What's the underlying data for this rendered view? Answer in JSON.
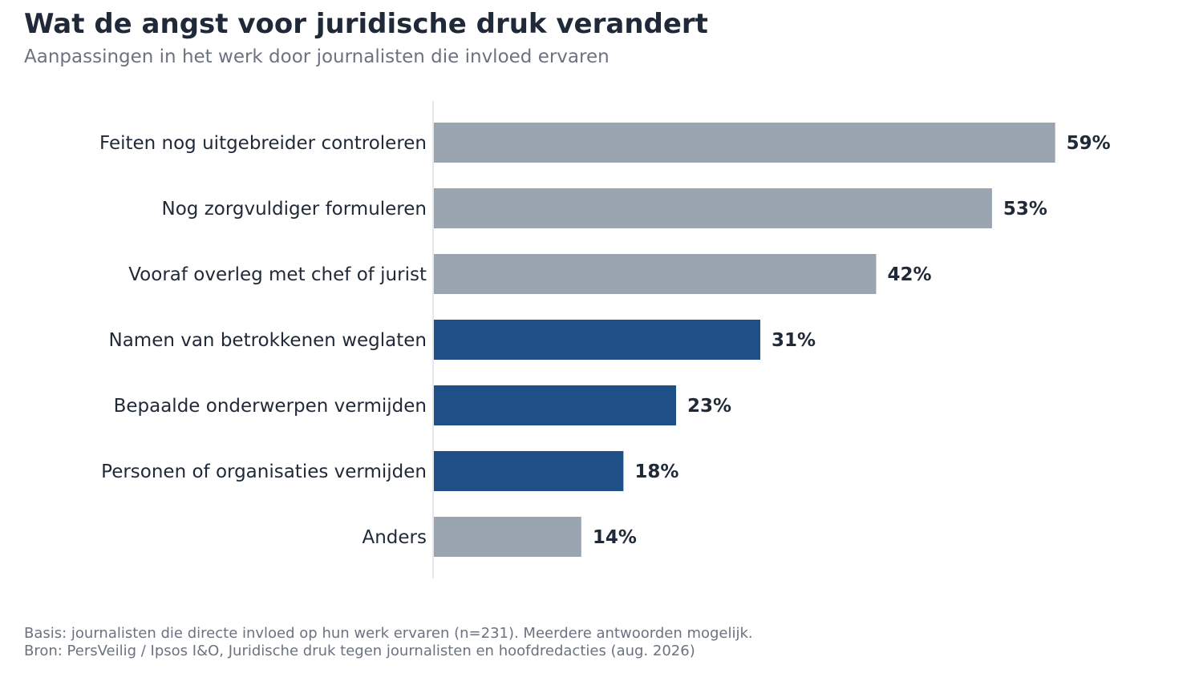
{
  "title": "Wat de angst voor juridische druk verandert",
  "subtitle": "Aanpassingen in het werk door journalisten die invloed ervaren",
  "footer": {
    "basis": "Basis: journalisten die directe invloed op hun werk ervaren (n=231). Meerdere antwoorden mogelijk.",
    "source": "Bron: PersVeilig / Ipsos I&O, Juridische druk tegen journalisten en hoofdredacties (aug. 2026)"
  },
  "colors": {
    "muted": "#9aa5b0",
    "highlight": "#1e4f86",
    "text": "#1f2937",
    "axis": "#e5e7eb"
  },
  "chart_data": {
    "type": "bar",
    "orientation": "horizontal",
    "categories": [
      "Feiten nog uitgebreider controleren",
      "Nog zorgvuldiger formuleren",
      "Vooraf overleg met chef of jurist",
      "Namen van betrokkenen weglaten",
      "Bepaalde onderwerpen vermijden",
      "Personen of organisaties vermijden",
      "Anders"
    ],
    "values": [
      59,
      53,
      42,
      31,
      23,
      18,
      14
    ],
    "value_labels": [
      "59%",
      "53%",
      "42%",
      "31%",
      "23%",
      "18%",
      "14%"
    ],
    "highlighted": [
      false,
      false,
      false,
      true,
      true,
      true,
      false
    ],
    "xlim": [
      0,
      100
    ],
    "grid": false,
    "legend": "none"
  }
}
